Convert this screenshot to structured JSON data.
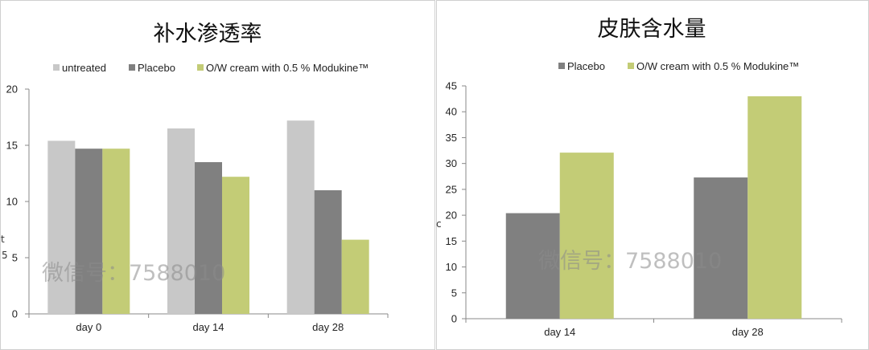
{
  "watermark": "微信号：7588010",
  "charts": [
    {
      "chart_data": {
        "type": "bar",
        "title": "补水渗透率",
        "categories": [
          "day 0",
          "day 14",
          "day 28"
        ],
        "series": [
          {
            "name": "untreated",
            "values": [
              15.4,
              16.5,
              17.2
            ]
          },
          {
            "name": "Placebo",
            "values": [
              14.7,
              13.5,
              11.0
            ]
          },
          {
            "name": "O/W cream with 0.5 % Modukine™",
            "values": [
              14.7,
              12.2,
              6.6
            ]
          }
        ],
        "ylim": [
          0,
          20
        ],
        "yticks": [
          "0",
          "5",
          "10",
          "15",
          "20"
        ],
        "xlabel": "",
        "ylabel": "",
        "legend": "top",
        "grid": false
      },
      "colors": [
        "#c8c8c8",
        "#808080",
        "#c3cc76"
      ],
      "edge_fragments": [
        "5",
        "t"
      ]
    },
    {
      "chart_data": {
        "type": "bar",
        "title": "皮肤含水量",
        "categories": [
          "day 14",
          "day 28"
        ],
        "series": [
          {
            "name": "Placebo",
            "values": [
              20.4,
              27.3
            ]
          },
          {
            "name": "O/W cream with 0.5 % Modukine™",
            "values": [
              32.1,
              43.0
            ]
          }
        ],
        "ylim": [
          0,
          45
        ],
        "yticks": [
          "0",
          "5",
          "10",
          "15",
          "20",
          "25",
          "30",
          "35",
          "40",
          "45"
        ],
        "xlabel": "",
        "ylabel": "",
        "legend": "top",
        "grid": false
      },
      "colors": [
        "#808080",
        "#c3cc76"
      ],
      "edge_fragments": [
        "c"
      ]
    }
  ]
}
